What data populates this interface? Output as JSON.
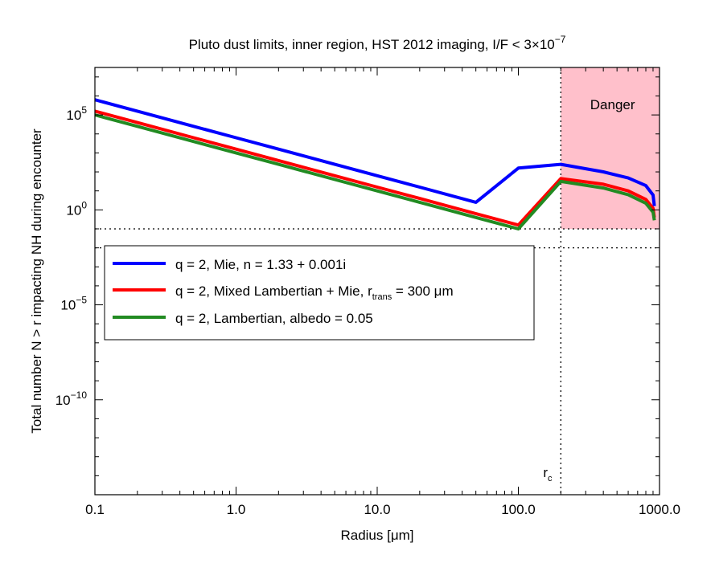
{
  "chart_data": {
    "type": "line",
    "title": {
      "main": "Pluto dust limits, inner region, HST 2012 imaging, I/F < 3×10",
      "sup": "−7"
    },
    "xlabel": "Radius [μm]",
    "ylabel": "Total number N > r impacting NH during encounter",
    "x_scale": "log",
    "y_scale": "log",
    "xlim": [
      0.1,
      1000
    ],
    "ylim_exp": [
      -15,
      7.5
    ],
    "x_ticks": [
      {
        "value": 0.1,
        "label": "0.1"
      },
      {
        "value": 1,
        "label": "1.0"
      },
      {
        "value": 10,
        "label": "10.0"
      },
      {
        "value": 100,
        "label": "100.0"
      },
      {
        "value": 1000,
        "label": "1000.0"
      }
    ],
    "y_ticks": [
      {
        "exp": 5,
        "base": "10",
        "sup": "5"
      },
      {
        "exp": 0,
        "base": "10",
        "sup": "0"
      },
      {
        "exp": -5,
        "base": "10",
        "sup": "−5"
      },
      {
        "exp": -10,
        "base": "10",
        "sup": "−10"
      }
    ],
    "danger_region": {
      "label": "Danger",
      "x_from": 200,
      "x_to": 1000,
      "y_exp_from": -1,
      "color": "#ffc0cb"
    },
    "reference_lines": {
      "vertical": {
        "x": 200,
        "label": "r",
        "label_sub": "c"
      },
      "horizontal_exp": [
        -1,
        -2
      ]
    },
    "series": [
      {
        "name": "q = 2, Mie, n = 1.33 + 0.001i",
        "color": "#0000ff",
        "x": [
          0.1,
          0.2,
          0.5,
          1,
          2,
          5,
          10,
          20,
          50,
          100,
          200,
          400,
          600,
          800,
          900,
          920
        ],
        "log10_y": [
          5.8,
          5.2,
          4.4,
          3.8,
          3.2,
          2.4,
          1.8,
          1.2,
          0.4,
          2.2,
          2.4,
          2.0,
          1.68,
          1.28,
          0.78,
          0.2
        ]
      },
      {
        "name": "q = 2, Mixed Lambertian + Mie, r_trans = 300 μm",
        "color": "#ff0000",
        "sub_text": "trans",
        "x": [
          0.1,
          0.2,
          0.5,
          1,
          2,
          5,
          10,
          20,
          50,
          100,
          200,
          400,
          600,
          800,
          900,
          920
        ],
        "log10_y": [
          5.2,
          4.6,
          3.8,
          3.2,
          2.6,
          1.8,
          1.2,
          0.6,
          -0.2,
          -0.8,
          1.65,
          1.35,
          1.0,
          0.55,
          0.08,
          -0.4
        ]
      },
      {
        "name": "q = 2, Lambertian, albedo = 0.05",
        "color": "#228b22",
        "x": [
          0.1,
          0.2,
          0.5,
          1,
          2,
          5,
          10,
          20,
          50,
          100,
          200,
          400,
          600,
          800,
          900,
          920
        ],
        "log10_y": [
          5.0,
          4.4,
          3.6,
          3.0,
          2.4,
          1.6,
          1.0,
          0.4,
          -0.4,
          -1.0,
          1.5,
          1.15,
          0.8,
          0.35,
          -0.12,
          -0.55
        ]
      }
    ],
    "legend": {
      "position": "upper-left"
    }
  }
}
